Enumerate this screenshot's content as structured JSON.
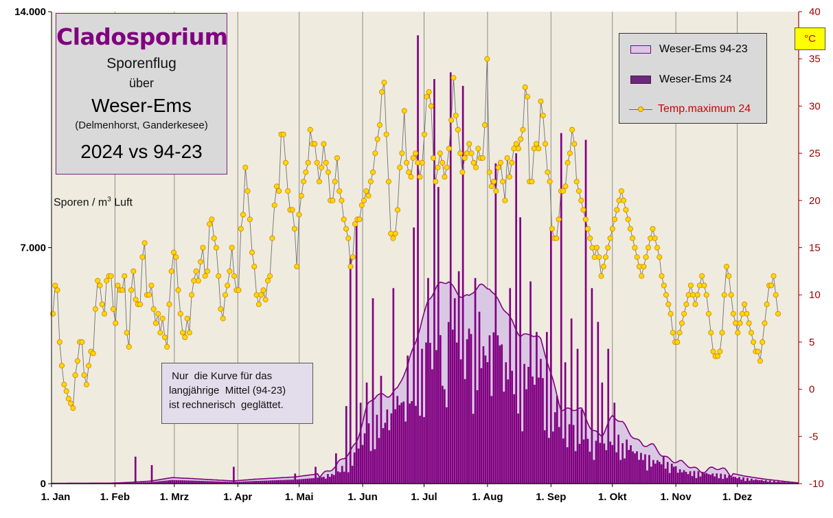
{
  "title": {
    "main": "Cladosporium",
    "line1": "Sporenflug",
    "line2": "über",
    "line3": "Weser-Ems",
    "line4": "(Delmenhorst,  Ganderkesee)",
    "line5": "2024 vs 94-23"
  },
  "note": " Nur  die Kurve für das\nlangjährige  Mittel (94-23)\nist rechnerisch  geglättet.",
  "y_left_label": "Sporen / m",
  "y_left_label_sup": "3",
  "y_left_label_suffix": " Luft",
  "y_right_unit": "°C",
  "legend": {
    "series1": "Weser-Ems 94-23",
    "series2": "Weser-Ems 24",
    "series3": "Temp.maximum 24"
  },
  "colors": {
    "plot_bg": "#efebdf",
    "mean_fill": "#d9c8e4",
    "mean_line": "#800080",
    "bar": "#800080",
    "temp_line": "#707070",
    "temp_marker": "#ffd700",
    "temp_marker_edge": "#d08000",
    "right_axis": "#a00000"
  },
  "chart_data": {
    "type": "bar",
    "x_months": [
      "1. Jan",
      "1. Feb",
      "1. Mrz",
      "1. Apr",
      "1. Mai",
      "1. Jun",
      "1. Jul",
      "1. Aug",
      "1. Sep",
      "1. Okt",
      "1. Nov",
      "1. Dez"
    ],
    "y_left": {
      "ticks": [
        "0",
        "7.000",
        "14.000"
      ],
      "ylim": [
        0,
        14000
      ]
    },
    "y_right": {
      "ticks": [
        "-10",
        "-5",
        "0",
        "5",
        "10",
        "15",
        "20",
        "25",
        "30",
        "35",
        "40"
      ],
      "ylim": [
        -10,
        40
      ]
    },
    "mean_9423_keypoints": {
      "day": [
        1,
        30,
        40,
        50,
        60,
        70,
        90,
        100,
        120,
        130,
        140,
        150,
        155,
        160,
        165,
        170,
        175,
        180,
        185,
        190,
        195,
        200,
        205,
        210,
        215,
        220,
        225,
        230,
        235,
        240,
        245,
        250,
        255,
        260,
        265,
        270,
        275,
        280,
        285,
        290,
        295,
        300,
        305,
        310,
        320,
        330,
        340,
        350,
        366
      ],
      "value": [
        10,
        15,
        40,
        80,
        180,
        150,
        80,
        130,
        200,
        280,
        420,
        1300,
        2200,
        2600,
        2700,
        2800,
        3400,
        4500,
        5500,
        5800,
        6000,
        5700,
        5500,
        5800,
        5900,
        5400,
        4800,
        4400,
        4550,
        4200,
        3200,
        2300,
        2200,
        2100,
        1650,
        1500,
        1900,
        1800,
        1500,
        1100,
        1050,
        900,
        700,
        500,
        450,
        350,
        220,
        130,
        20
      ]
    },
    "bars_2024_peaks": {
      "day": [
        42,
        50,
        90,
        120,
        130,
        140,
        145,
        147,
        150,
        152,
        155,
        158,
        162,
        165,
        168,
        170,
        172,
        175,
        178,
        180,
        182,
        185,
        188,
        190,
        193,
        196,
        198,
        200,
        202,
        205,
        208,
        210,
        213,
        216,
        218,
        220,
        223,
        225,
        228,
        230,
        233,
        235,
        238,
        240,
        243,
        245,
        248,
        250,
        252,
        255,
        258,
        260,
        262,
        265,
        268,
        270,
        273,
        276,
        280,
        283,
        286,
        290,
        295,
        300,
        305,
        310,
        320,
        335
      ],
      "value": [
        800,
        550,
        500,
        300,
        500,
        900,
        2300,
        6700,
        7800,
        2400,
        3000,
        5500,
        3200,
        2200,
        5800,
        2600,
        2400,
        3800,
        7600,
        13300,
        4000,
        6100,
        12000,
        8800,
        2800,
        12200,
        5500,
        6300,
        11800,
        4600,
        6100,
        5100,
        3800,
        2600,
        9500,
        4100,
        3600,
        5800,
        9800,
        7900,
        2800,
        6000,
        4500,
        3700,
        4500,
        7600,
        2600,
        10400,
        3600,
        4900,
        4000,
        2200,
        10200,
        5800,
        4800,
        3000,
        4000,
        2400,
        1200,
        1000,
        900,
        700,
        700,
        800,
        500,
        400,
        300,
        200
      ]
    },
    "temp_max_2024": [
      8,
      11,
      10.5,
      5,
      2.5,
      0.5,
      -0.2,
      -1,
      -1.5,
      -2,
      1.5,
      3,
      5,
      5,
      1.5,
      0.5,
      2.5,
      4,
      3.8,
      8.5,
      11.5,
      11,
      9,
      8,
      11.5,
      12,
      12,
      8.5,
      7,
      11,
      10.5,
      10.5,
      12,
      6,
      4.5,
      10.5,
      12.5,
      9.5,
      9,
      9,
      14,
      15.5,
      10,
      10,
      11,
      8.5,
      7,
      8,
      6,
      7.5,
      5.5,
      4.5,
      9,
      12.5,
      14.5,
      14,
      10.5,
      8,
      6,
      5.5,
      7.5,
      6,
      10,
      11.5,
      12.5,
      11.5,
      13.5,
      15,
      12,
      12.5,
      17.5,
      18,
      16,
      15,
      12,
      8.5,
      7.5,
      10,
      11,
      12.5,
      15,
      12,
      10.5,
      10.5,
      17,
      18.5,
      23.5,
      21,
      18,
      14.5,
      13,
      10,
      9,
      10,
      10.5,
      9.5,
      11.5,
      12,
      16,
      19.5,
      21.5,
      21,
      27,
      27,
      24,
      21,
      19,
      19,
      17,
      13,
      18.5,
      20.5,
      22,
      23,
      24,
      27.5,
      26,
      26,
      24,
      22,
      23.5,
      26,
      24,
      23,
      20,
      20,
      22,
      24.5,
      21,
      20,
      18,
      17,
      16,
      13,
      14,
      17.5,
      18,
      18,
      19.5,
      20,
      21,
      20.5,
      22,
      23,
      25,
      26.5,
      28,
      31.5,
      32.5,
      27,
      22,
      16.5,
      16,
      16.5,
      19,
      23.5,
      25,
      29.5,
      24,
      23,
      22.5,
      24.5,
      25,
      24,
      22.5,
      24,
      27,
      31,
      31.5,
      30,
      24.5,
      22,
      23.5,
      25,
      24,
      22.5,
      23.5,
      25.5,
      28.5,
      33,
      29,
      27.5,
      25,
      23,
      24.5,
      25,
      26,
      25,
      24,
      23.5,
      25.5,
      24.5,
      24.5,
      28,
      35,
      23,
      21.5,
      22,
      21,
      23.5,
      24,
      22,
      20,
      24.5,
      22.5,
      24,
      25.5,
      26,
      25.5,
      26.5,
      27.5,
      32,
      31,
      22,
      22,
      25.5,
      26,
      25.5,
      30.5,
      29,
      26,
      23,
      22,
      17,
      16,
      16,
      18,
      21,
      21,
      21.5,
      24,
      25,
      27.5,
      26,
      22,
      21,
      20,
      19,
      18,
      17,
      16,
      15,
      14,
      15,
      14,
      12,
      13,
      14,
      15,
      16,
      17,
      18,
      19,
      20,
      21,
      20,
      19,
      18,
      17,
      16,
      15,
      14,
      13,
      12,
      13,
      14,
      15,
      16,
      17,
      16,
      15,
      14,
      12,
      11,
      10,
      9,
      8,
      6,
      5,
      5,
      6,
      7,
      8,
      9,
      10,
      11,
      10,
      9,
      10,
      11,
      12,
      11,
      10,
      8,
      6,
      4,
      3.5,
      3.5,
      4,
      6,
      10,
      13,
      12,
      10,
      8,
      7,
      6,
      7,
      8,
      9,
      8,
      7,
      6,
      5,
      4,
      4,
      3,
      5,
      7,
      9,
      11,
      11,
      12,
      10,
      8
    ]
  }
}
